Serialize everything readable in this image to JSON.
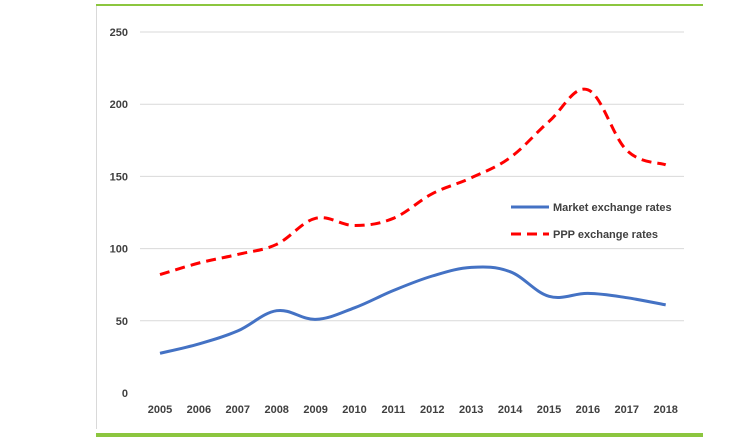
{
  "chart_data": {
    "type": "line",
    "title": "",
    "xlabel": "",
    "ylabel": "",
    "x": [
      "2005",
      "2006",
      "2007",
      "2008",
      "2009",
      "2010",
      "2011",
      "2012",
      "2013",
      "2014",
      "2015",
      "2016",
      "2017",
      "2018"
    ],
    "ylim": [
      0,
      250
    ],
    "yticks": [
      "0",
      "50",
      "100",
      "150",
      "200",
      "250"
    ],
    "grid": true,
    "legend_position": "right",
    "series": [
      {
        "name": "Market exchange rates",
        "color": "#4472c4",
        "style": "solid",
        "values": [
          27.5,
          34,
          43,
          57,
          51,
          59,
          71,
          81,
          87,
          84,
          67,
          69,
          66,
          61
        ]
      },
      {
        "name": "PPP exchange rates",
        "color": "#ff0000",
        "style": "dashed",
        "values": [
          82,
          90,
          96,
          103,
          121,
          116,
          121,
          138,
          149,
          163,
          188,
          210,
          168,
          158
        ]
      }
    ]
  }
}
